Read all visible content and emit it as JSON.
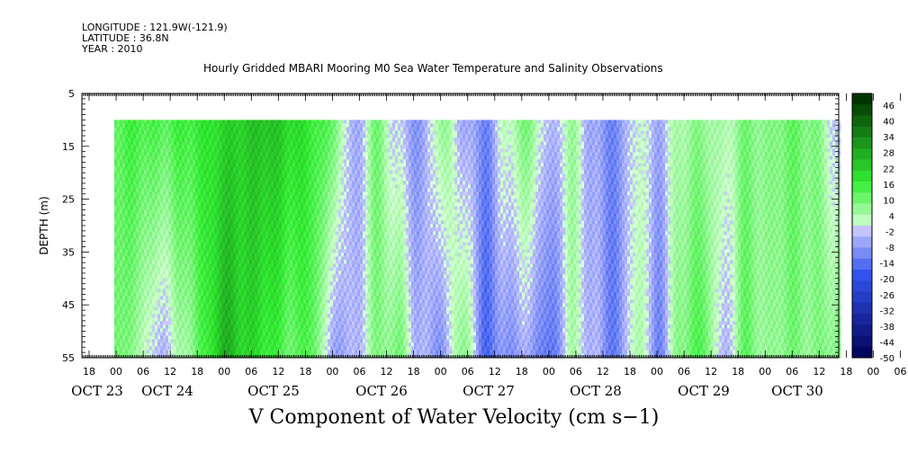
{
  "header": {
    "longitude": "LONGITUDE : 121.9W(-121.9)",
    "latitude": "LATITUDE : 36.8N",
    "year": "YEAR : 2010"
  },
  "chart_data": {
    "type": "heatmap",
    "title": "Hourly Gridded MBARI Mooring M0 Sea Water Temperature and Salinity Observations",
    "xlabel": "V Component of Water Velocity (cm s−1)",
    "ylabel": "DEPTH (m)",
    "ylim": [
      5,
      55
    ],
    "y_ticks": [
      5,
      15,
      25,
      35,
      45,
      55
    ],
    "y_inverted": true,
    "x_hour_ticks": [
      "18",
      "00",
      "06",
      "12",
      "18",
      "00",
      "06",
      "12",
      "18",
      "00",
      "06",
      "12",
      "18",
      "00",
      "06",
      "12",
      "18",
      "00",
      "06",
      "12",
      "18",
      "00",
      "06",
      "12",
      "18",
      "00",
      "06",
      "12",
      "18",
      "00",
      "06",
      "12"
    ],
    "x_day_labels": [
      "OCT 23",
      "OCT 24",
      "OCT 25",
      "OCT 26",
      "OCT 27",
      "OCT 28",
      "OCT 29",
      "OCT 30"
    ],
    "colorbar": {
      "labels": [
        "46",
        "40",
        "34",
        "28",
        "22",
        "16",
        "10",
        "4",
        "-2",
        "-8",
        "-14",
        "-20",
        "-26",
        "-32",
        "-38",
        "-44",
        "-50"
      ],
      "levels": 24,
      "vmin": -50,
      "vmax": 52
    },
    "colors": {
      "positive_scale": [
        "#ddffdd",
        "#33ee33",
        "#003300"
      ],
      "negative_scale": [
        "#ccccff",
        "#3355ee",
        "#000055"
      ]
    },
    "data_depth_range": [
      10,
      55
    ],
    "time_start_label": "OCT 24 00",
    "time_end_label": "OCT 30 20",
    "column_profiles": [
      {
        "t": 0.0,
        "top": 14,
        "bottom": 12
      },
      {
        "t": 0.03,
        "top": 16,
        "bottom": 6
      },
      {
        "t": 0.06,
        "top": 14,
        "bottom": -4
      },
      {
        "t": 0.09,
        "top": 16,
        "bottom": 4
      },
      {
        "t": 0.12,
        "top": 18,
        "bottom": 14
      },
      {
        "t": 0.15,
        "top": 22,
        "bottom": 28
      },
      {
        "t": 0.18,
        "top": 24,
        "bottom": 22
      },
      {
        "t": 0.21,
        "top": 26,
        "bottom": 18
      },
      {
        "t": 0.24,
        "top": 22,
        "bottom": 12
      },
      {
        "t": 0.27,
        "top": 18,
        "bottom": 14
      },
      {
        "t": 0.3,
        "top": 12,
        "bottom": -6
      },
      {
        "t": 0.33,
        "top": -6,
        "bottom": -4
      },
      {
        "t": 0.36,
        "top": 10,
        "bottom": 8
      },
      {
        "t": 0.39,
        "top": -2,
        "bottom": 10
      },
      {
        "t": 0.42,
        "top": -8,
        "bottom": -4
      },
      {
        "t": 0.45,
        "top": 8,
        "bottom": -8
      },
      {
        "t": 0.48,
        "top": -4,
        "bottom": 10
      },
      {
        "t": 0.51,
        "top": -10,
        "bottom": -14
      },
      {
        "t": 0.54,
        "top": 4,
        "bottom": -8
      },
      {
        "t": 0.57,
        "top": 10,
        "bottom": -6
      },
      {
        "t": 0.6,
        "top": -4,
        "bottom": -14
      },
      {
        "t": 0.63,
        "top": 6,
        "bottom": 4
      },
      {
        "t": 0.66,
        "top": -6,
        "bottom": -4
      },
      {
        "t": 0.69,
        "top": -10,
        "bottom": -12
      },
      {
        "t": 0.72,
        "top": 2,
        "bottom": 6
      },
      {
        "t": 0.75,
        "top": -4,
        "bottom": -10
      },
      {
        "t": 0.78,
        "top": 6,
        "bottom": 10
      },
      {
        "t": 0.81,
        "top": 8,
        "bottom": 14
      },
      {
        "t": 0.84,
        "top": 4,
        "bottom": -4
      },
      {
        "t": 0.87,
        "top": 10,
        "bottom": 12
      },
      {
        "t": 0.9,
        "top": 8,
        "bottom": 6
      },
      {
        "t": 0.93,
        "top": 12,
        "bottom": 10
      },
      {
        "t": 0.96,
        "top": 10,
        "bottom": 8
      },
      {
        "t": 1.0,
        "top": -2,
        "bottom": 10
      }
    ]
  }
}
